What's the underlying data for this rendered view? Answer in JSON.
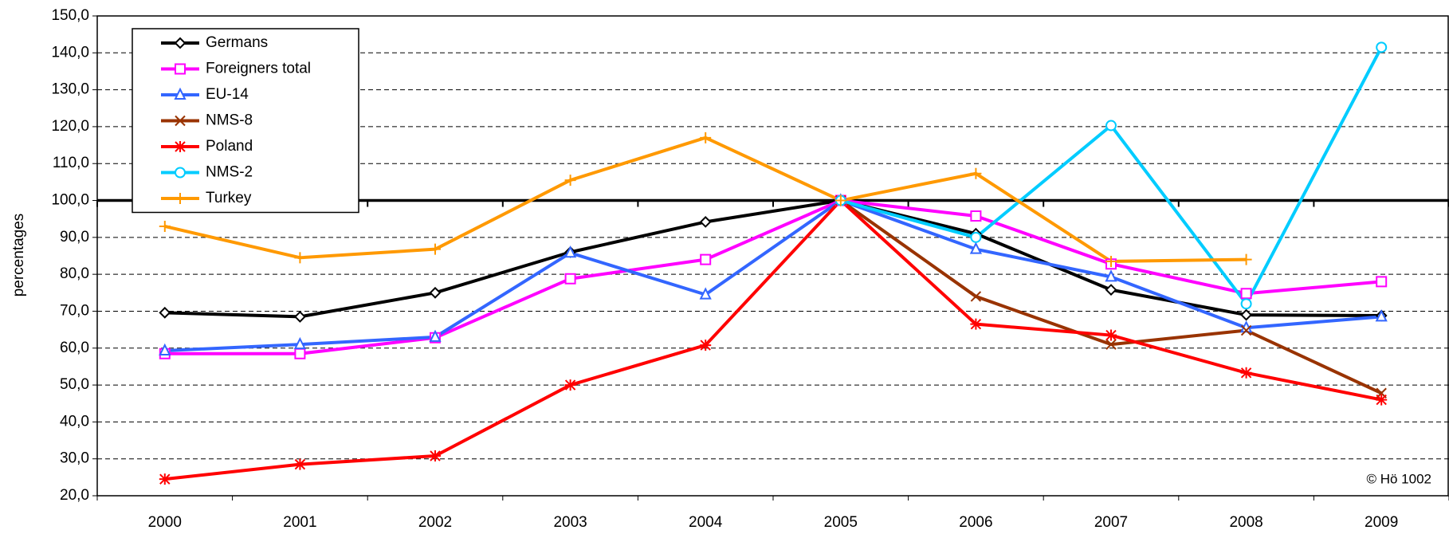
{
  "chart_data": {
    "type": "line",
    "y_label": "percentages",
    "annotation": "© Hö 1002",
    "categories": [
      "2000",
      "2001",
      "2002",
      "2003",
      "2004",
      "2005",
      "2006",
      "2007",
      "2008",
      "2009"
    ],
    "ylim": [
      20,
      150
    ],
    "yticks": [
      {
        "value": 20,
        "label": "20,0"
      },
      {
        "value": 30,
        "label": "30,0"
      },
      {
        "value": 40,
        "label": "40,0"
      },
      {
        "value": 50,
        "label": "50,0"
      },
      {
        "value": 60,
        "label": "60,0"
      },
      {
        "value": 70,
        "label": "70,0"
      },
      {
        "value": 80,
        "label": "80,0"
      },
      {
        "value": 90,
        "label": "90,0"
      },
      {
        "value": 100,
        "label": "100,0"
      },
      {
        "value": 110,
        "label": "110,0"
      },
      {
        "value": 120,
        "label": "120,0"
      },
      {
        "value": 130,
        "label": "130,0"
      },
      {
        "value": 140,
        "label": "140,0"
      },
      {
        "value": 150,
        "label": "150,0"
      }
    ],
    "grid": true,
    "reference_line": 100,
    "legend": "top-left",
    "series": [
      {
        "name": "Germans",
        "color": "#000000",
        "marker": "diamond",
        "values": [
          69.6,
          68.5,
          75,
          86,
          94.2,
          100,
          91,
          75.8,
          69,
          68.8
        ]
      },
      {
        "name": "Foreigners total",
        "color": "#ff00ff",
        "marker": "square",
        "values": [
          58.5,
          58.5,
          62.8,
          78.8,
          84,
          100,
          95.8,
          82.8,
          74.8,
          78
        ]
      },
      {
        "name": "EU-14",
        "color": "#3366ff",
        "marker": "triangle",
        "values": [
          59.3,
          61,
          63,
          85.8,
          74.5,
          100,
          86.8,
          79.3,
          65.5,
          68.5
        ]
      },
      {
        "name": "NMS-8",
        "color": "#993300",
        "marker": "x",
        "values": [
          null,
          null,
          null,
          null,
          null,
          100,
          74,
          61,
          64.8,
          47.8
        ]
      },
      {
        "name": "Poland",
        "color": "#ff0000",
        "marker": "asterisk",
        "values": [
          24.5,
          28.5,
          30.8,
          50,
          60.8,
          100,
          66.5,
          63.5,
          53.3,
          46
        ]
      },
      {
        "name": "NMS-2",
        "color": "#00ccff",
        "marker": "circle",
        "values": [
          null,
          null,
          null,
          null,
          null,
          100,
          90,
          120.3,
          72,
          141.5
        ]
      },
      {
        "name": "Turkey",
        "color": "#ff9900",
        "marker": "plus",
        "values": [
          93,
          84.5,
          86.8,
          105.5,
          117,
          100,
          107.3,
          83.5,
          84,
          null
        ]
      }
    ]
  }
}
